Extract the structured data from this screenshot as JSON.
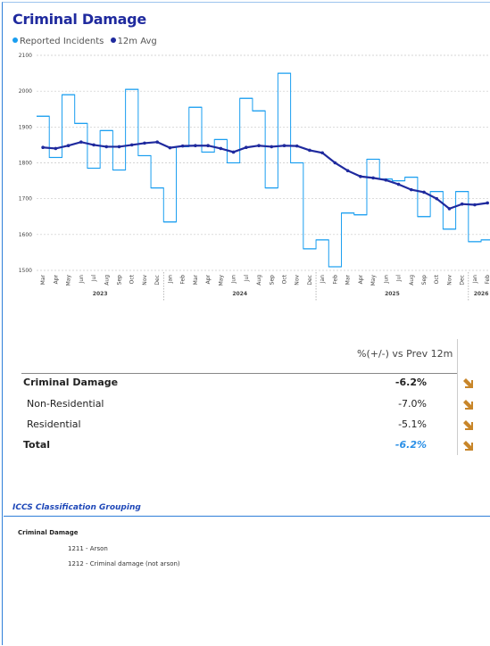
{
  "chart_data": {
    "type": "line",
    "title": "Criminal Damage",
    "categories": [
      [
        "Mar",
        "2023"
      ],
      [
        "Apr",
        "2023"
      ],
      [
        "May",
        "2023"
      ],
      [
        "Jun",
        "2023"
      ],
      [
        "Jul",
        "2023"
      ],
      [
        "Aug",
        "2023"
      ],
      [
        "Sep",
        "2023"
      ],
      [
        "Oct",
        "2023"
      ],
      [
        "Nov",
        "2023"
      ],
      [
        "Dec",
        "2023"
      ],
      [
        "Jan",
        "2024"
      ],
      [
        "Feb",
        "2024"
      ],
      [
        "Mar",
        "2024"
      ],
      [
        "Apr",
        "2024"
      ],
      [
        "May",
        "2024"
      ],
      [
        "Jun",
        "2024"
      ],
      [
        "Jul",
        "2024"
      ],
      [
        "Aug",
        "2024"
      ],
      [
        "Sep",
        "2024"
      ],
      [
        "Oct",
        "2024"
      ],
      [
        "Nov",
        "2024"
      ],
      [
        "Dec",
        "2024"
      ],
      [
        "Jan",
        "2025"
      ],
      [
        "Feb",
        "2025"
      ],
      [
        "Mar",
        "2025"
      ],
      [
        "Apr",
        "2025"
      ],
      [
        "May",
        "2025"
      ],
      [
        "Jun",
        "2025"
      ],
      [
        "Jul",
        "2025"
      ],
      [
        "Aug",
        "2025"
      ],
      [
        "Sep",
        "2025"
      ],
      [
        "Oct",
        "2025"
      ],
      [
        "Nov",
        "2025"
      ],
      [
        "Dec",
        "2025"
      ],
      [
        "Jan",
        "2026"
      ],
      [
        "Feb",
        "2026"
      ]
    ],
    "series": [
      {
        "name": "Reported Incidents",
        "color": "#1a9ef0",
        "style": "step",
        "values": [
          1930,
          1815,
          1990,
          1910,
          1785,
          1890,
          1780,
          2005,
          1820,
          1730,
          1635,
          1845,
          1955,
          1830,
          1865,
          1800,
          1980,
          1945,
          1730,
          2050,
          1800,
          1560,
          1585,
          1510,
          1660,
          1655,
          1810,
          1755,
          1750,
          1760,
          1650,
          1720,
          1615,
          1720,
          1580,
          1585
        ]
      },
      {
        "name": "12m Avg",
        "color": "#1f2a9e",
        "style": "line",
        "values": [
          1843,
          1840,
          1848,
          1858,
          1850,
          1845,
          1845,
          1850,
          1855,
          1858,
          1842,
          1847,
          1848,
          1848,
          1840,
          1830,
          1843,
          1848,
          1845,
          1848,
          1847,
          1835,
          1828,
          1800,
          1778,
          1762,
          1758,
          1752,
          1740,
          1725,
          1718,
          1700,
          1672,
          1685,
          1683,
          1688
        ]
      }
    ],
    "ylim": [
      1500,
      2100
    ],
    "yticks": [
      1500,
      1600,
      1700,
      1800,
      1900,
      2000,
      2100
    ],
    "grid": true
  },
  "table": {
    "header": "%(+/-) vs Prev 12m",
    "rows": [
      [
        "Criminal Damage",
        "-6.2%"
      ],
      [
        "Non-Residential",
        "-7.0%"
      ],
      [
        "Residential",
        "-5.1%"
      ],
      [
        "Total",
        "-6.2%"
      ]
    ]
  },
  "classification": {
    "title": "ICCS Classification Grouping",
    "group": "Criminal Damage",
    "items": [
      "1211 - Arson",
      "1212 - Criminal damage (not arson)"
    ]
  }
}
